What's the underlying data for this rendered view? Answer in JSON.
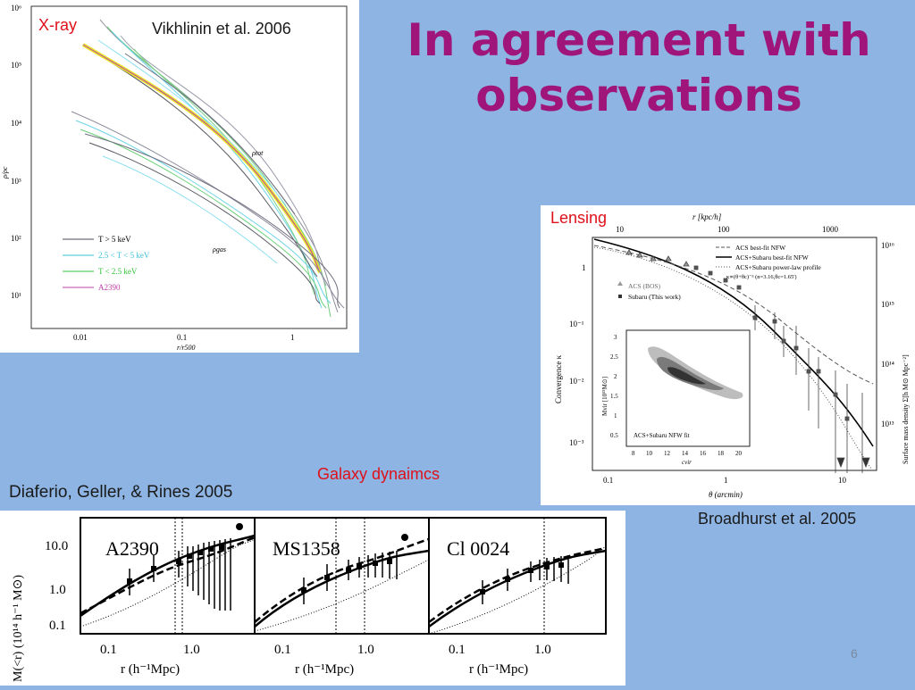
{
  "slide": {
    "title_line1": "In agreement with",
    "title_line2": "observations",
    "page_number": "6"
  },
  "xray": {
    "label": "X-ray",
    "citation": "Vikhlinin et al. 2006",
    "y_ticks": [
      "10⁶",
      "10⁵",
      "10⁴",
      "10³",
      "10²",
      "10¹"
    ],
    "x_ticks": [
      "0.01",
      "0.1",
      "1"
    ],
    "ylabel": "ρ/ρc",
    "xlabel": "r/r500",
    "curve_labels": {
      "tot": "ρtot",
      "gas": "ρgas"
    },
    "legend": [
      {
        "label": "T > 5 keV",
        "color": "#4a4a5a"
      },
      {
        "label": "2.5 < T < 5 keV",
        "color": "#3bc0d8"
      },
      {
        "label": "T < 2.5 keV",
        "color": "#33c33a"
      },
      {
        "label": "A2390",
        "color": "#c040a8"
      }
    ],
    "highlight_color": "#e6e62a"
  },
  "lensing": {
    "label": "Lensing",
    "citation": "Broadhurst et al. 2005",
    "top_axis_label": "r [kpc/h]",
    "top_ticks": [
      "10",
      "100",
      "1000"
    ],
    "x_ticks": [
      "0.1",
      "1",
      "10"
    ],
    "xlabel": "θ (arcmin)",
    "y_ticks": [
      "1",
      "10⁻¹",
      "10⁻²",
      "10⁻³"
    ],
    "ylabel": "Convergence κ",
    "right_ticks": [
      "10¹⁶",
      "10¹⁵",
      "10¹⁴",
      "10¹³"
    ],
    "right_label": "Surface mass density Σ[h M⊙ Mpc⁻²]",
    "legend_lines": [
      "ACS best-fit NFW",
      "ACS+Subaru best-fit NFW",
      "ACS+Subaru power-law profile",
      "κ∝(θ+θc)⁻ⁿ (n=3.16,θc=1.65')"
    ],
    "legend_points": [
      "ACS (BOS)",
      "Subaru (This work)"
    ],
    "inset": {
      "caption": "ACS+Subaru NFW fit",
      "x_ticks": [
        "8",
        "10",
        "12",
        "14",
        "16",
        "18",
        "20"
      ],
      "xlabel": "cvir",
      "y_ticks": [
        "3",
        "2.5",
        "2",
        "1.5",
        "1",
        "0.5"
      ],
      "ylabel": "Mvir [10¹⁵M⊙]"
    }
  },
  "dynamics": {
    "label": "Galaxy dynaimcs",
    "citation": "Diaferio, Geller, & Rines 2005",
    "ylabel": "M(<r) (10¹⁴ h⁻¹ M⊙)",
    "y_ticks": [
      "10.0",
      "1.0",
      "0.1"
    ],
    "x_ticks": [
      "0.1",
      "1.0"
    ],
    "xlabel": "r (h⁻¹Mpc)",
    "panels": [
      {
        "name": "A2390"
      },
      {
        "name": "MS1358"
      },
      {
        "name": "Cl 0024"
      }
    ]
  }
}
